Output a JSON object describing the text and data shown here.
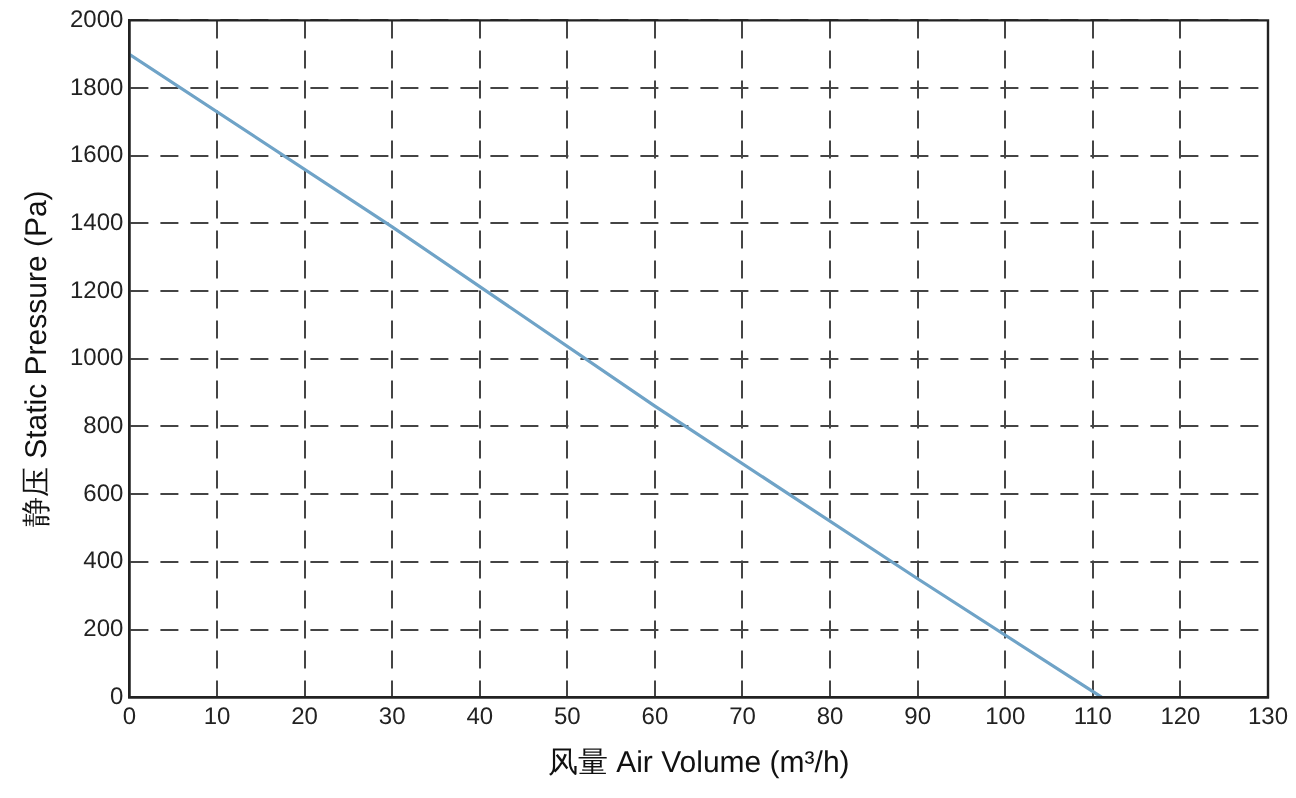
{
  "chart_data": {
    "type": "line",
    "xlabel": "风量 Air Volume (m³/h)",
    "ylabel": "静压 Static Pressure (Pa)",
    "x": [
      0,
      30,
      60,
      90,
      111
    ],
    "series": [
      {
        "color": "#6fa3c7",
        "values": [
          1900,
          1390,
          860,
          350,
          0
        ]
      }
    ],
    "xlim": [
      0,
      130
    ],
    "xticks": [
      0,
      10,
      20,
      30,
      40,
      50,
      60,
      70,
      80,
      90,
      100,
      110,
      120,
      130
    ],
    "ylim": [
      0,
      2000
    ],
    "yticks": [
      0,
      200,
      400,
      600,
      800,
      1000,
      1200,
      1400,
      1600,
      1800,
      2000
    ],
    "grid": true,
    "legend": false,
    "marker": "none",
    "line_style": "solid"
  }
}
